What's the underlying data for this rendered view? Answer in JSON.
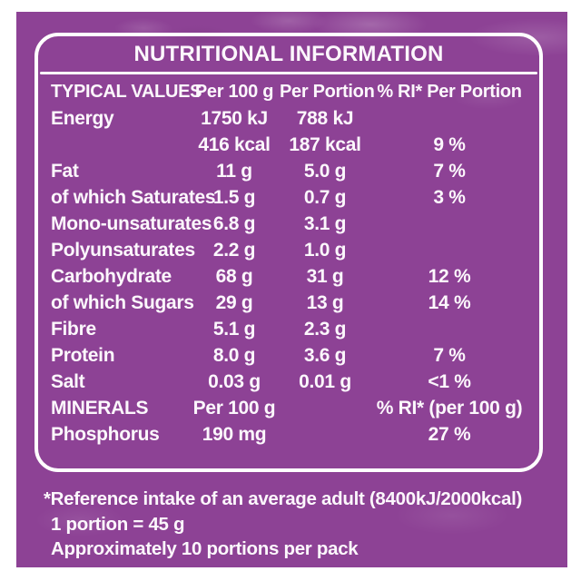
{
  "colors": {
    "background_purple": "#8d4295",
    "texture_light_purple": "#a768ae",
    "text_white": "#fcf7fc",
    "border_white": "#ffffff"
  },
  "panel": {
    "title": "NUTRITIONAL INFORMATION"
  },
  "table": {
    "header": [
      "TYPICAL VALUES",
      "Per 100 g",
      "Per Portion",
      "% RI* Per Portion"
    ],
    "rows": [
      [
        "Energy",
        "1750 kJ",
        "788 kJ",
        ""
      ],
      [
        "",
        "416 kcal",
        "187 kcal",
        "9 %"
      ],
      [
        "Fat",
        "11 g",
        "5.0 g",
        "7 %"
      ],
      [
        "of which Saturates",
        "1.5 g",
        "0.7 g",
        "3 %"
      ],
      [
        "Mono-unsaturates",
        "6.8 g",
        "3.1 g",
        ""
      ],
      [
        "Polyunsaturates",
        "2.2 g",
        "1.0 g",
        ""
      ],
      [
        "Carbohydrate",
        "68 g",
        "31 g",
        "12 %"
      ],
      [
        "of which Sugars",
        "29 g",
        "13 g",
        "14 %"
      ],
      [
        "Fibre",
        "5.1 g",
        "2.3 g",
        ""
      ],
      [
        "Protein",
        "8.0 g",
        "3.6 g",
        "7 %"
      ],
      [
        "Salt",
        "0.03 g",
        "0.01 g",
        "<1 %"
      ]
    ],
    "minerals_header": [
      "MINERALS",
      "Per 100 g",
      "",
      "% RI* (per 100 g)"
    ],
    "minerals_rows": [
      [
        "Phosphorus",
        "190 mg",
        "",
        "27 %"
      ]
    ]
  },
  "footnotes": [
    "*Reference intake of an average adult (8400kJ/2000kcal)",
    "1 portion = 45 g",
    "Approximately 10 portions per pack"
  ]
}
